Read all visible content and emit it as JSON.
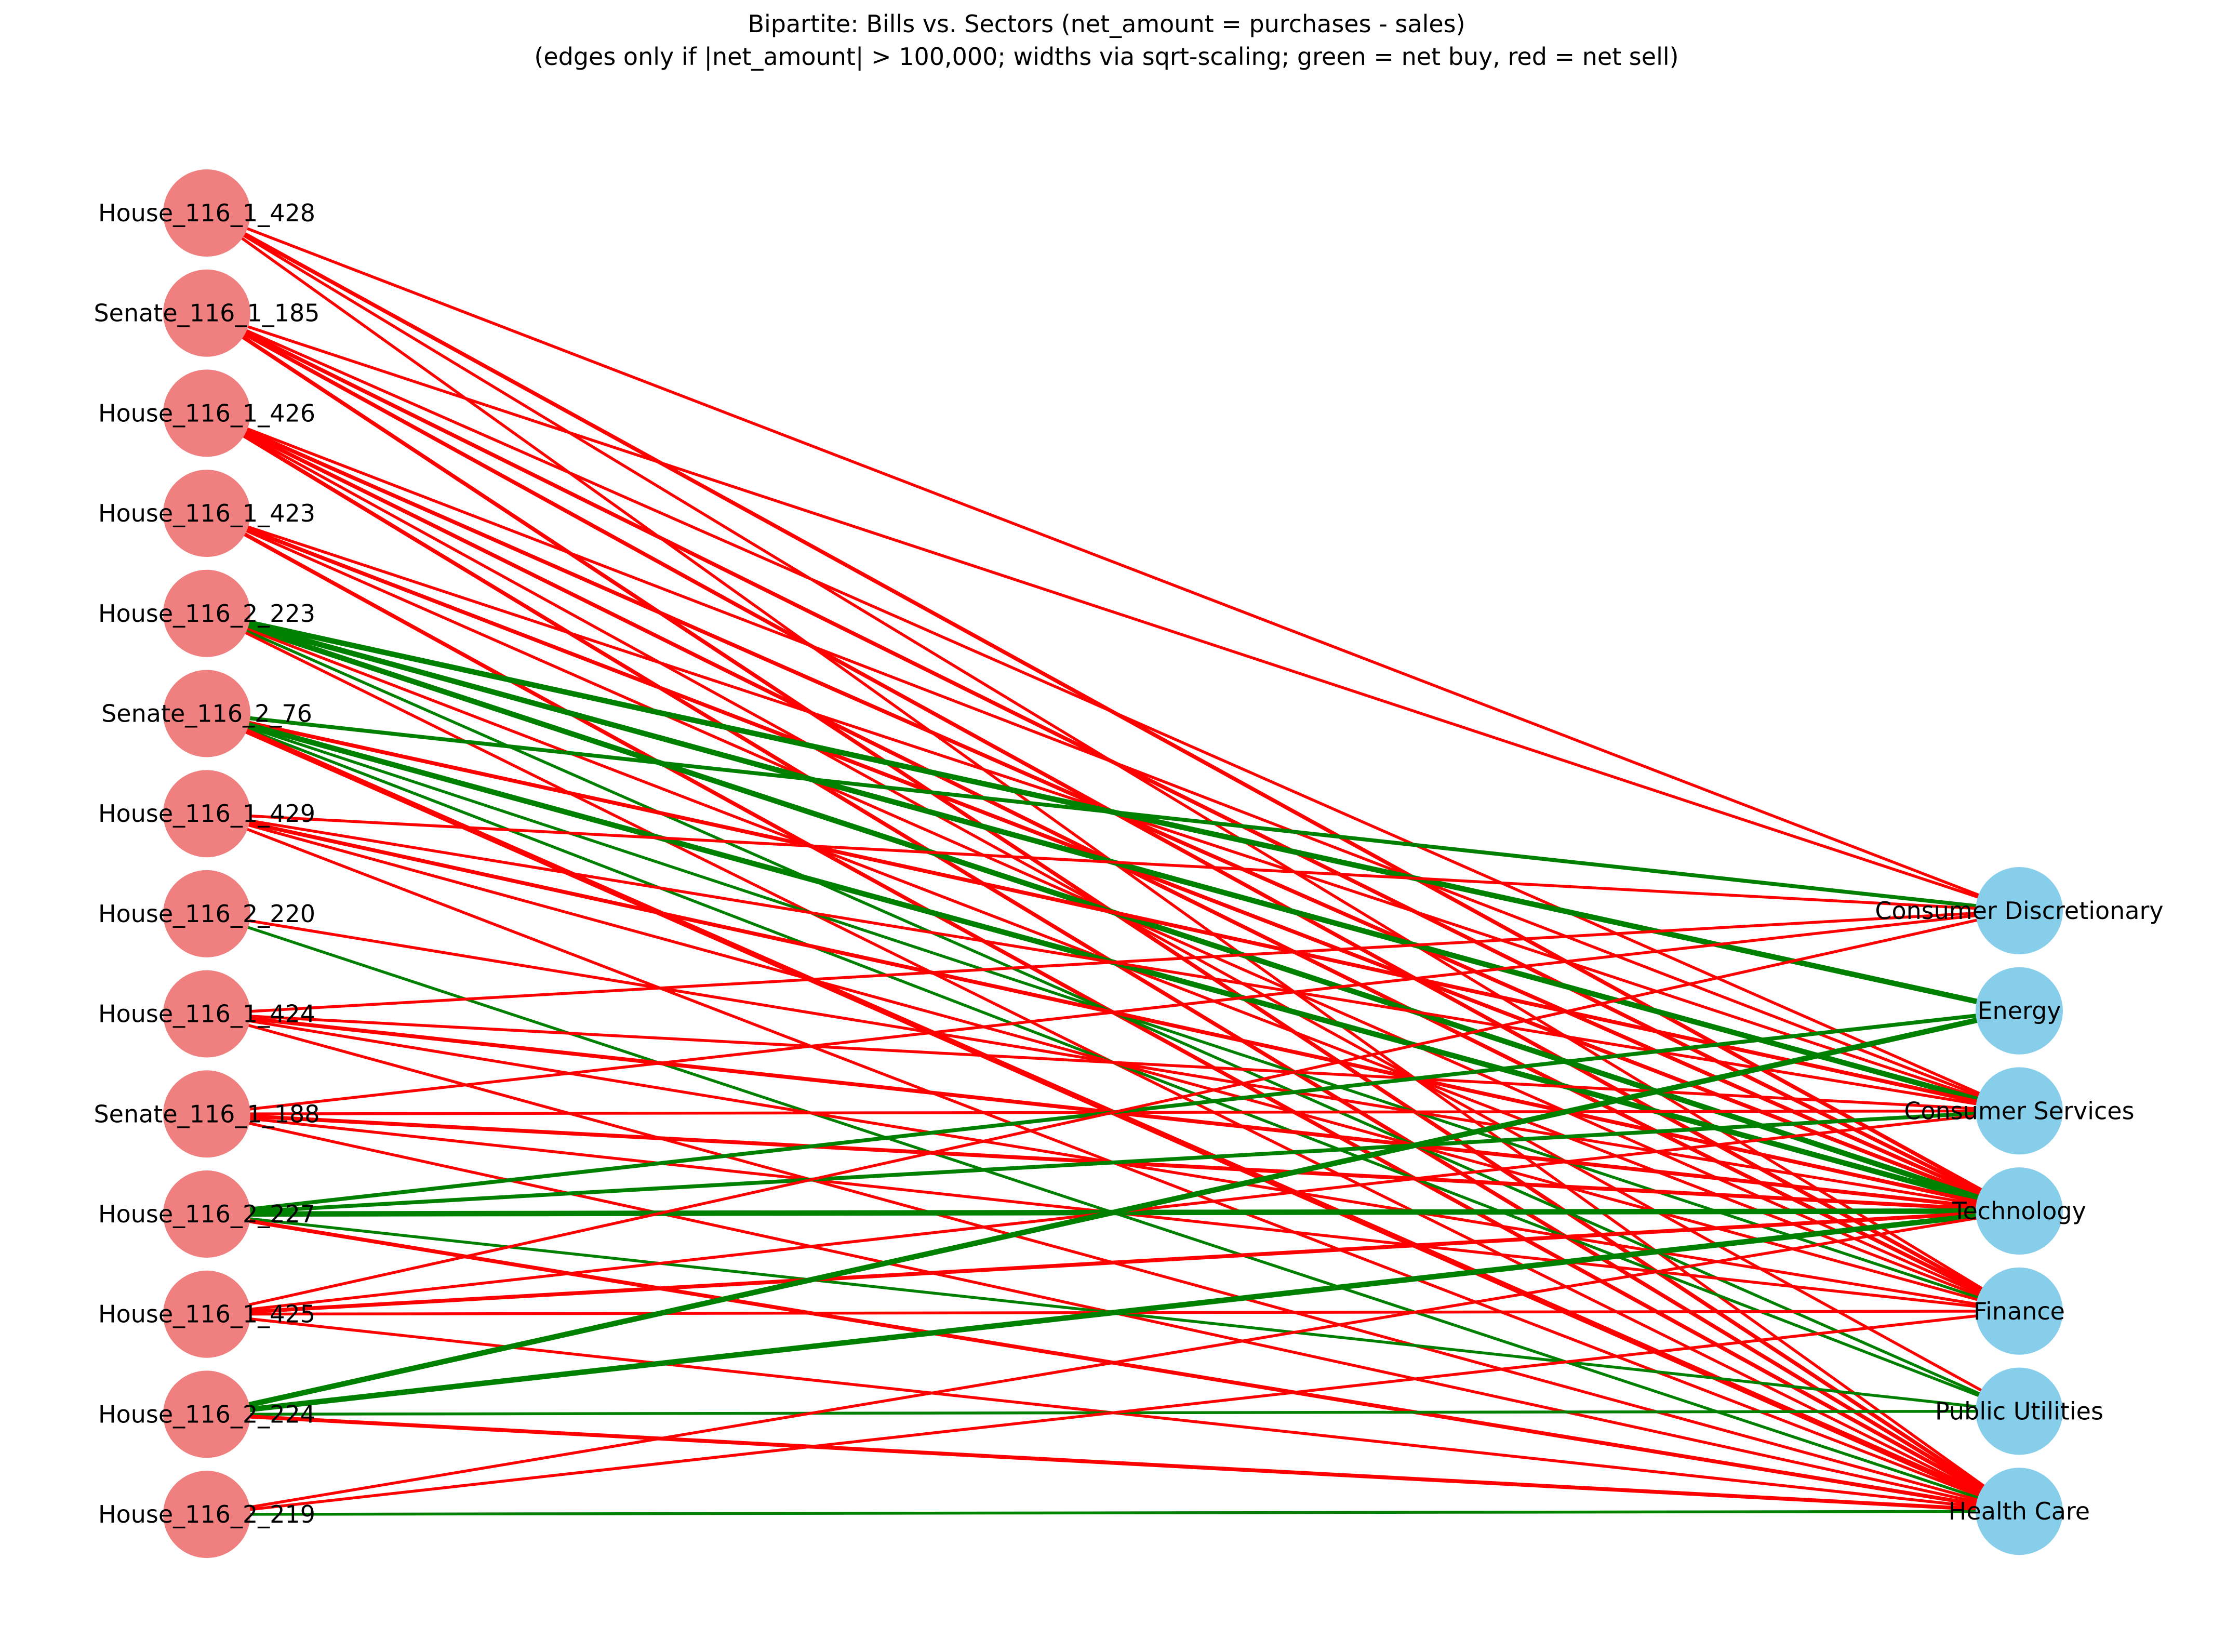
{
  "title": {
    "line1": "Bipartite: Bills vs. Sectors (net_amount = purchases - sales)",
    "line2": "(edges only if |net_amount| > 100,000; widths via sqrt-scaling; green = net buy, red = net sell)"
  },
  "colors": {
    "bill_node": "#f08080",
    "sector_node": "#87ceeb",
    "net_buy": "#008000",
    "net_sell": "#ff0000"
  },
  "bills": [
    "House_116_1_428",
    "Senate_116_1_185",
    "House_116_1_426",
    "House_116_1_423",
    "House_116_2_223",
    "Senate_116_2_76",
    "House_116_1_429",
    "House_116_2_220",
    "House_116_1_424",
    "Senate_116_1_188",
    "House_116_2_227",
    "House_116_1_425",
    "House_116_2_224",
    "House_116_2_219"
  ],
  "sectors": [
    "Consumer Discretionary",
    "Energy",
    "Consumer Services",
    "Technology",
    "Finance",
    "Public Utilities",
    "Health Care"
  ],
  "edges": [
    {
      "bill": "House_116_1_428",
      "sector": "Consumer Discretionary",
      "direction": "net sell",
      "strength": 1
    },
    {
      "bill": "House_116_1_428",
      "sector": "Technology",
      "direction": "net sell",
      "strength": 2
    },
    {
      "bill": "House_116_1_428",
      "sector": "Finance",
      "direction": "net sell",
      "strength": 1
    },
    {
      "bill": "House_116_1_428",
      "sector": "Health Care",
      "direction": "net sell",
      "strength": 1
    },
    {
      "bill": "Senate_116_1_185",
      "sector": "Consumer Discretionary",
      "direction": "net sell",
      "strength": 1
    },
    {
      "bill": "Senate_116_1_185",
      "sector": "Consumer Services",
      "direction": "net sell",
      "strength": 1
    },
    {
      "bill": "Senate_116_1_185",
      "sector": "Technology",
      "direction": "net sell",
      "strength": 2
    },
    {
      "bill": "Senate_116_1_185",
      "sector": "Finance",
      "direction": "net sell",
      "strength": 2
    },
    {
      "bill": "Senate_116_1_185",
      "sector": "Health Care",
      "direction": "net sell",
      "strength": 2
    },
    {
      "bill": "House_116_1_426",
      "sector": "Consumer Services",
      "direction": "net sell",
      "strength": 1
    },
    {
      "bill": "House_116_1_426",
      "sector": "Technology",
      "direction": "net sell",
      "strength": 2
    },
    {
      "bill": "House_116_1_426",
      "sector": "Finance",
      "direction": "net sell",
      "strength": 2
    },
    {
      "bill": "House_116_1_426",
      "sector": "Public Utilities",
      "direction": "net sell",
      "strength": 1
    },
    {
      "bill": "House_116_1_426",
      "sector": "Health Care",
      "direction": "net sell",
      "strength": 2
    },
    {
      "bill": "House_116_1_423",
      "sector": "Consumer Services",
      "direction": "net sell",
      "strength": 1
    },
    {
      "bill": "House_116_1_423",
      "sector": "Technology",
      "direction": "net sell",
      "strength": 2
    },
    {
      "bill": "House_116_1_423",
      "sector": "Finance",
      "direction": "net sell",
      "strength": 1
    },
    {
      "bill": "House_116_1_423",
      "sector": "Health Care",
      "direction": "net sell",
      "strength": 2
    },
    {
      "bill": "House_116_2_223",
      "sector": "Energy",
      "direction": "net buy",
      "strength": 3
    },
    {
      "bill": "House_116_2_223",
      "sector": "Consumer Services",
      "direction": "net buy",
      "strength": 3
    },
    {
      "bill": "House_116_2_223",
      "sector": "Technology",
      "direction": "net buy",
      "strength": 3
    },
    {
      "bill": "House_116_2_223",
      "sector": "Finance",
      "direction": "net sell",
      "strength": 1
    },
    {
      "bill": "House_116_2_223",
      "sector": "Public Utilities",
      "direction": "net buy",
      "strength": 1
    },
    {
      "bill": "House_116_2_223",
      "sector": "Health Care",
      "direction": "net sell",
      "strength": 1
    },
    {
      "bill": "Senate_116_2_76",
      "sector": "Consumer Discretionary",
      "direction": "net buy",
      "strength": 2
    },
    {
      "bill": "Senate_116_2_76",
      "sector": "Consumer Services",
      "direction": "net sell",
      "strength": 2
    },
    {
      "bill": "Senate_116_2_76",
      "sector": "Technology",
      "direction": "net buy",
      "strength": 3
    },
    {
      "bill": "Senate_116_2_76",
      "sector": "Finance",
      "direction": "net buy",
      "strength": 1
    },
    {
      "bill": "Senate_116_2_76",
      "sector": "Public Utilities",
      "direction": "net buy",
      "strength": 1
    },
    {
      "bill": "Senate_116_2_76",
      "sector": "Health Care",
      "direction": "net sell",
      "strength": 3
    },
    {
      "bill": "House_116_1_429",
      "sector": "Consumer Discretionary",
      "direction": "net sell",
      "strength": 1
    },
    {
      "bill": "House_116_1_429",
      "sector": "Consumer Services",
      "direction": "net sell",
      "strength": 1
    },
    {
      "bill": "House_116_1_429",
      "sector": "Technology",
      "direction": "net sell",
      "strength": 2
    },
    {
      "bill": "House_116_1_429",
      "sector": "Finance",
      "direction": "net sell",
      "strength": 1
    },
    {
      "bill": "House_116_1_429",
      "sector": "Health Care",
      "direction": "net sell",
      "strength": 1
    },
    {
      "bill": "House_116_2_220",
      "sector": "Technology",
      "direction": "net sell",
      "strength": 1
    },
    {
      "bill": "House_116_2_220",
      "sector": "Health Care",
      "direction": "net buy",
      "strength": 1
    },
    {
      "bill": "House_116_1_424",
      "sector": "Consumer Discretionary",
      "direction": "net sell",
      "strength": 1
    },
    {
      "bill": "House_116_1_424",
      "sector": "Consumer Services",
      "direction": "net sell",
      "strength": 1
    },
    {
      "bill": "House_116_1_424",
      "sector": "Technology",
      "direction": "net sell",
      "strength": 2
    },
    {
      "bill": "House_116_1_424",
      "sector": "Finance",
      "direction": "net sell",
      "strength": 1
    },
    {
      "bill": "House_116_1_424",
      "sector": "Health Care",
      "direction": "net sell",
      "strength": 1
    },
    {
      "bill": "Senate_116_1_188",
      "sector": "Consumer Discretionary",
      "direction": "net sell",
      "strength": 1
    },
    {
      "bill": "Senate_116_1_188",
      "sector": "Consumer Services",
      "direction": "net sell",
      "strength": 1
    },
    {
      "bill": "Senate_116_1_188",
      "sector": "Technology",
      "direction": "net sell",
      "strength": 2
    },
    {
      "bill": "Senate_116_1_188",
      "sector": "Finance",
      "direction": "net sell",
      "strength": 1
    },
    {
      "bill": "Senate_116_1_188",
      "sector": "Health Care",
      "direction": "net sell",
      "strength": 1
    },
    {
      "bill": "House_116_2_227",
      "sector": "Energy",
      "direction": "net buy",
      "strength": 2
    },
    {
      "bill": "House_116_2_227",
      "sector": "Consumer Services",
      "direction": "net buy",
      "strength": 2
    },
    {
      "bill": "House_116_2_227",
      "sector": "Technology",
      "direction": "net buy",
      "strength": 3
    },
    {
      "bill": "House_116_2_227",
      "sector": "Public Utilities",
      "direction": "net buy",
      "strength": 1
    },
    {
      "bill": "House_116_2_227",
      "sector": "Health Care",
      "direction": "net sell",
      "strength": 2
    },
    {
      "bill": "House_116_1_425",
      "sector": "Consumer Discretionary",
      "direction": "net sell",
      "strength": 1
    },
    {
      "bill": "House_116_1_425",
      "sector": "Consumer Services",
      "direction": "net sell",
      "strength": 1
    },
    {
      "bill": "House_116_1_425",
      "sector": "Technology",
      "direction": "net sell",
      "strength": 2
    },
    {
      "bill": "House_116_1_425",
      "sector": "Finance",
      "direction": "net sell",
      "strength": 1
    },
    {
      "bill": "House_116_1_425",
      "sector": "Health Care",
      "direction": "net sell",
      "strength": 1
    },
    {
      "bill": "House_116_2_224",
      "sector": "Energy",
      "direction": "net buy",
      "strength": 3
    },
    {
      "bill": "House_116_2_224",
      "sector": "Technology",
      "direction": "net buy",
      "strength": 3
    },
    {
      "bill": "House_116_2_224",
      "sector": "Public Utilities",
      "direction": "net buy",
      "strength": 1
    },
    {
      "bill": "House_116_2_224",
      "sector": "Health Care",
      "direction": "net sell",
      "strength": 2
    },
    {
      "bill": "House_116_2_219",
      "sector": "Finance",
      "direction": "net sell",
      "strength": 1
    },
    {
      "bill": "House_116_2_219",
      "sector": "Technology",
      "direction": "net sell",
      "strength": 1
    },
    {
      "bill": "House_116_2_219",
      "sector": "Health Care",
      "direction": "net buy",
      "strength": 1
    }
  ]
}
